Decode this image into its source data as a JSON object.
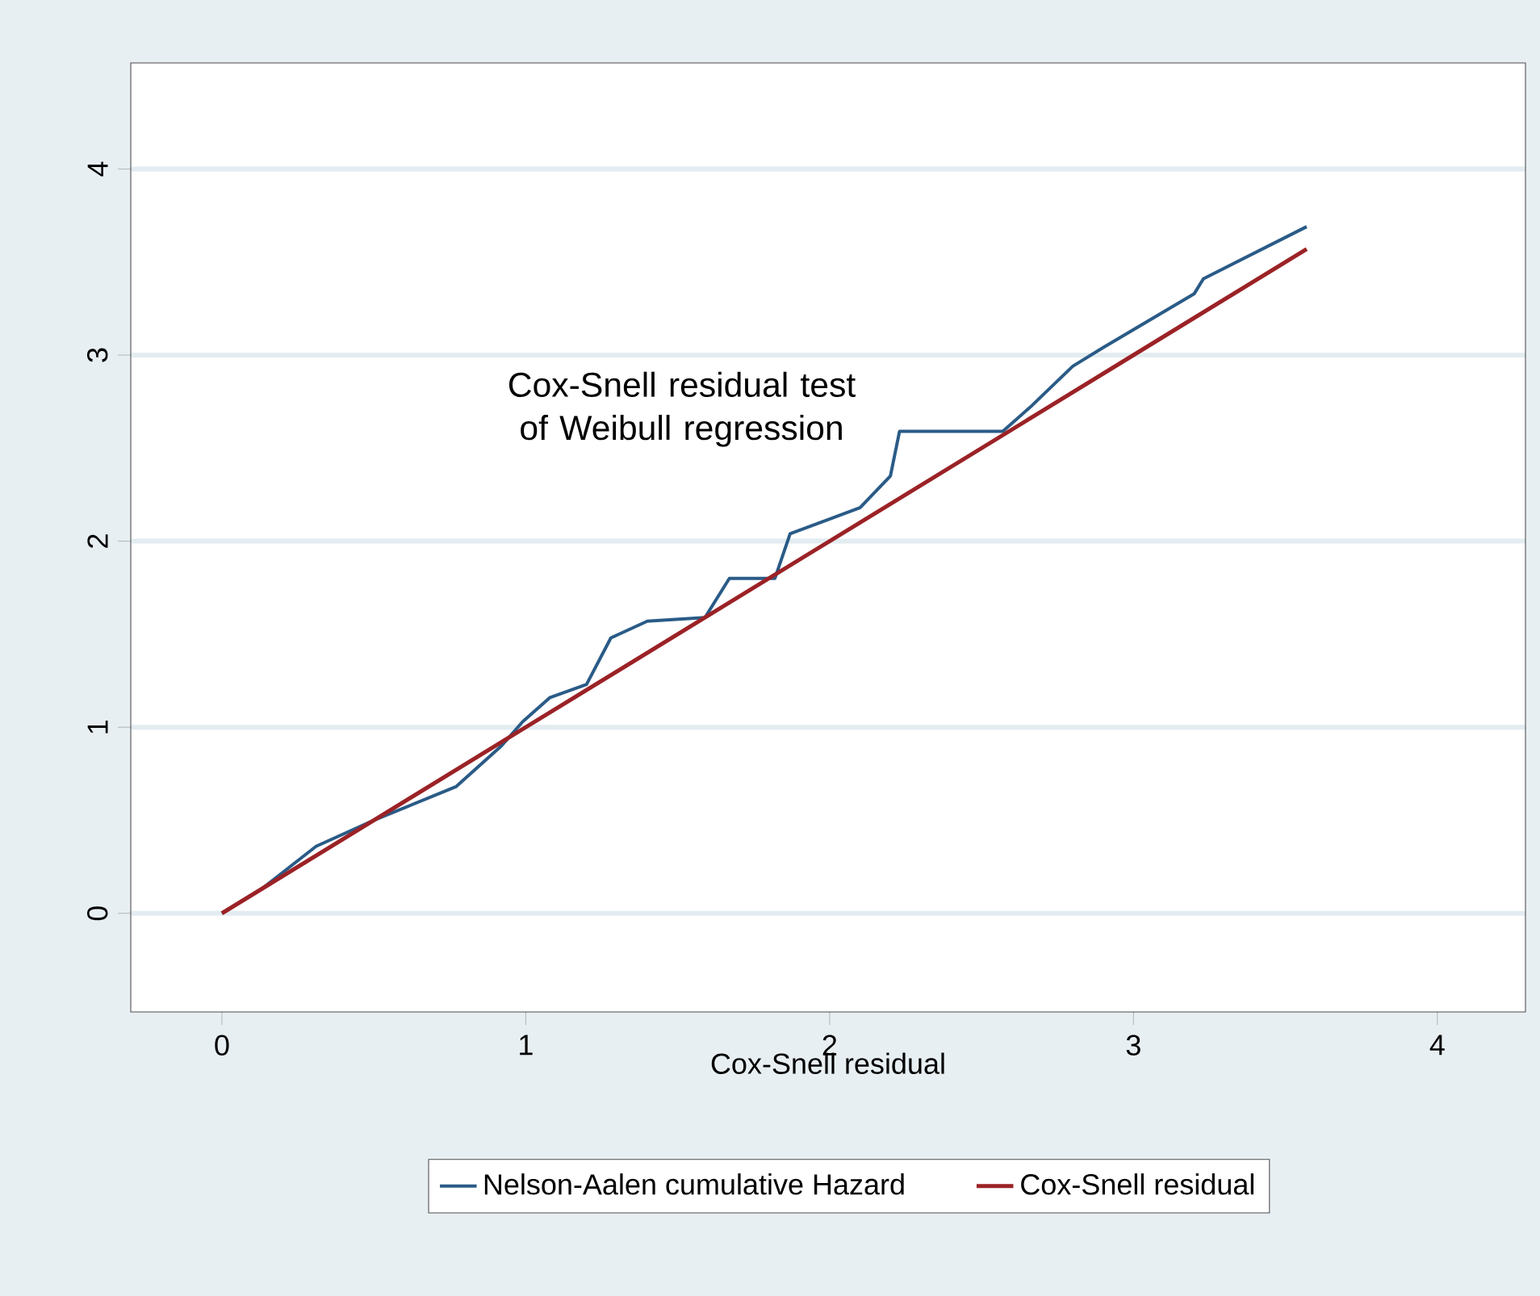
{
  "chart_data": {
    "type": "line",
    "xlabel": "Cox-Snell residual",
    "annotations": [
      "Cox-Snell residual test of Weibull regression"
    ],
    "xlim": [
      -0.3,
      4.29
    ],
    "ylim": [
      -0.53,
      4.57
    ],
    "xticks": [
      0,
      1,
      2,
      3,
      4
    ],
    "yticks": [
      0,
      1,
      2,
      3,
      4
    ],
    "grid": "y",
    "legend": "bottom",
    "series": [
      {
        "name": "Nelson-Aalen cumulative Hazard",
        "color": "#2a5b87",
        "x": [
          0,
          0.13,
          0.31,
          0.5,
          0.77,
          0.92,
          0.99,
          1.08,
          1.2,
          1.28,
          1.4,
          1.59,
          1.67,
          1.82,
          1.87,
          2.1,
          2.2,
          2.23,
          2.57,
          2.66,
          2.8,
          2.9,
          3.2,
          3.23,
          3.57
        ],
        "values": [
          0,
          0.13,
          0.36,
          0.5,
          0.68,
          0.9,
          1.03,
          1.16,
          1.23,
          1.48,
          1.57,
          1.59,
          1.8,
          1.8,
          2.04,
          2.18,
          2.35,
          2.59,
          2.59,
          2.72,
          2.94,
          3.04,
          3.33,
          3.41,
          3.69
        ]
      },
      {
        "name": "Cox-Snell residual",
        "color": "#9b2226",
        "x": [
          0,
          1,
          2,
          3,
          3.57
        ],
        "values": [
          0,
          1,
          2,
          3,
          3.57
        ]
      }
    ]
  }
}
